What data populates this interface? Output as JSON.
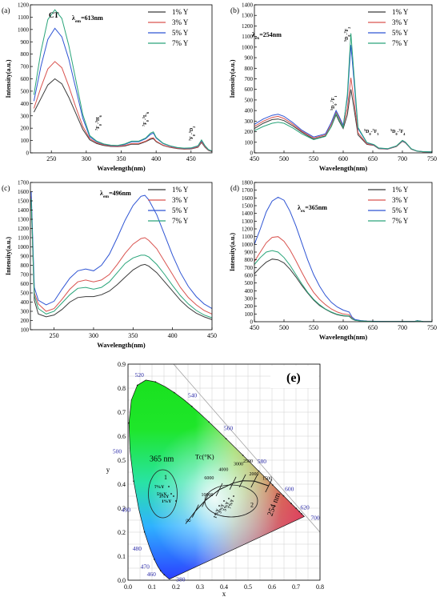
{
  "panel_labels": [
    "(a)",
    "(b)",
    "(c)",
    "(d)",
    "(e)"
  ],
  "series_names": [
    "1% Y",
    "3% Y",
    "5% Y",
    "7% Y"
  ],
  "series_colors": [
    "#3b3b3b",
    "#d9534f",
    "#2f55d4",
    "#2aa57a"
  ],
  "chart_data": [
    {
      "type": "line",
      "panel": "(a)",
      "annotation": "λem=613nm",
      "xlabel": "Wavelength(nm)",
      "ylabel": "Intensity(a.u.)",
      "xlim": [
        220,
        480
      ],
      "ylim": [
        0,
        1200
      ],
      "xticks": [
        250,
        300,
        350,
        400,
        450
      ],
      "yticks": [
        0,
        100,
        200,
        300,
        400,
        500,
        600,
        700,
        800,
        900,
        1000,
        1100,
        1200
      ],
      "peak_labels": [
        "CT",
        "7F0-5H6",
        "7F0-5L6",
        "7F0-5D2"
      ],
      "x": [
        225,
        235,
        245,
        255,
        265,
        275,
        285,
        295,
        305,
        315,
        325,
        335,
        345,
        355,
        365,
        375,
        385,
        392,
        396,
        400,
        410,
        420,
        430,
        440,
        450,
        460,
        465,
        470,
        475,
        480
      ],
      "series": [
        {
          "name": "1% Y",
          "values": [
            330,
            440,
            550,
            600,
            560,
            450,
            320,
            190,
            105,
            75,
            60,
            52,
            50,
            55,
            70,
            70,
            90,
            110,
            115,
            90,
            60,
            45,
            35,
            30,
            32,
            45,
            85,
            45,
            20,
            10
          ]
        },
        {
          "name": "3% Y",
          "values": [
            360,
            530,
            680,
            740,
            690,
            540,
            370,
            215,
            115,
            82,
            65,
            55,
            52,
            60,
            75,
            75,
            95,
            118,
            122,
            95,
            62,
            47,
            37,
            32,
            34,
            48,
            90,
            48,
            22,
            12
          ]
        },
        {
          "name": "5% Y",
          "values": [
            420,
            700,
            920,
            1010,
            940,
            760,
            520,
            280,
            130,
            90,
            70,
            60,
            58,
            68,
            90,
            90,
            115,
            150,
            160,
            120,
            75,
            55,
            42,
            36,
            38,
            55,
            100,
            55,
            25,
            14
          ]
        },
        {
          "name": "7% Y",
          "values": [
            470,
            820,
            1080,
            1160,
            1090,
            870,
            590,
            310,
            140,
            95,
            72,
            62,
            60,
            72,
            95,
            95,
            120,
            160,
            170,
            125,
            78,
            57,
            44,
            38,
            40,
            58,
            105,
            58,
            26,
            15
          ]
        }
      ]
    },
    {
      "type": "line",
      "panel": "(b)",
      "annotation": "λex=254nm",
      "xlabel": "Wavelength(nm)",
      "ylabel": "Intensity(a.u.)",
      "xlim": [
        450,
        750
      ],
      "ylim": [
        0,
        1400
      ],
      "xticks": [
        450,
        500,
        550,
        600,
        650,
        700,
        750
      ],
      "yticks": [
        0,
        100,
        200,
        300,
        400,
        500,
        600,
        700,
        800,
        900,
        1000,
        1100,
        1200,
        1300,
        1400
      ],
      "peak_labels": [
        "5D0-7F1",
        "5D0-7F2",
        "5D0-7F3",
        "5D0-7F4"
      ],
      "x": [
        450,
        465,
        480,
        490,
        500,
        515,
        530,
        550,
        570,
        580,
        588,
        593,
        600,
        607,
        613,
        618,
        625,
        640,
        652,
        660,
        675,
        690,
        700,
        705,
        715,
        725,
        735,
        750
      ],
      "series": [
        {
          "name": "1% Y",
          "values": [
            230,
            280,
            315,
            320,
            305,
            255,
            195,
            130,
            160,
            250,
            360,
            300,
            230,
            360,
            600,
            430,
            170,
            80,
            70,
            40,
            35,
            60,
            110,
            95,
            35,
            15,
            10,
            8
          ]
        },
        {
          "name": "3% Y",
          "values": [
            250,
            300,
            335,
            345,
            325,
            270,
            205,
            140,
            170,
            270,
            390,
            330,
            250,
            420,
            710,
            510,
            190,
            85,
            72,
            42,
            36,
            62,
            112,
            98,
            36,
            16,
            10,
            8
          ]
        },
        {
          "name": "5% Y",
          "values": [
            270,
            320,
            355,
            365,
            345,
            285,
            215,
            150,
            180,
            290,
            400,
            345,
            260,
            520,
            1020,
            700,
            230,
            95,
            76,
            45,
            38,
            65,
            115,
            100,
            38,
            17,
            11,
            8
          ]
        },
        {
          "name": "7% Y",
          "values": [
            210,
            250,
            280,
            290,
            280,
            235,
            180,
            125,
            155,
            250,
            370,
            310,
            240,
            550,
            1130,
            760,
            240,
            98,
            78,
            46,
            39,
            66,
            118,
            102,
            38,
            17,
            11,
            8
          ]
        }
      ]
    },
    {
      "type": "line",
      "panel": "(c)",
      "annotation": "λem=496nm",
      "xlabel": "Wavelength(nm)",
      "ylabel": "Intensity(a.u.)",
      "xlim": [
        220,
        450
      ],
      "ylim": [
        100,
        1700
      ],
      "xticks": [
        250,
        300,
        350,
        400,
        450
      ],
      "yticks": [
        100,
        200,
        300,
        400,
        500,
        600,
        700,
        800,
        900,
        1000,
        1100,
        1200,
        1300,
        1400,
        1500,
        1600,
        1700
      ],
      "x": [
        221,
        225,
        230,
        240,
        250,
        260,
        270,
        280,
        290,
        300,
        310,
        320,
        330,
        340,
        350,
        360,
        365,
        370,
        380,
        390,
        400,
        410,
        420,
        430,
        440,
        450
      ],
      "series": [
        {
          "name": "1% Y",
          "values": [
            1500,
            420,
            270,
            240,
            260,
            320,
            400,
            450,
            460,
            460,
            480,
            520,
            590,
            670,
            750,
            800,
            810,
            790,
            720,
            620,
            520,
            420,
            340,
            280,
            240,
            210
          ]
        },
        {
          "name": "3% Y",
          "values": [
            1550,
            500,
            380,
            300,
            330,
            430,
            540,
            620,
            640,
            620,
            640,
            700,
            810,
            930,
            1030,
            1090,
            1100,
            1070,
            980,
            840,
            700,
            560,
            450,
            370,
            310,
            270
          ]
        },
        {
          "name": "5% Y",
          "values": [
            1600,
            560,
            420,
            370,
            410,
            540,
            660,
            740,
            760,
            740,
            800,
            920,
            1100,
            1290,
            1450,
            1550,
            1560,
            1510,
            1350,
            1130,
            910,
            720,
            570,
            460,
            380,
            330
          ]
        },
        {
          "name": "7% Y",
          "values": [
            1520,
            470,
            330,
            270,
            300,
            390,
            480,
            550,
            560,
            540,
            560,
            620,
            720,
            820,
            880,
            910,
            910,
            890,
            810,
            700,
            580,
            470,
            380,
            310,
            260,
            230
          ]
        }
      ]
    },
    {
      "type": "line",
      "panel": "(d)",
      "annotation": "λex=365nm",
      "xlabel": "Wavelength(nm)",
      "ylabel": "Intensity(a.u.)",
      "xlim": [
        450,
        750
      ],
      "ylim": [
        0,
        1800
      ],
      "xticks": [
        450,
        500,
        550,
        600,
        650,
        700,
        750
      ],
      "yticks": [
        0,
        100,
        200,
        300,
        400,
        500,
        600,
        700,
        800,
        900,
        1000,
        1100,
        1200,
        1300,
        1400,
        1500,
        1600,
        1700,
        1800
      ],
      "x": [
        450,
        460,
        470,
        480,
        490,
        500,
        510,
        520,
        530,
        540,
        550,
        560,
        570,
        580,
        590,
        600,
        610,
        615,
        620,
        630,
        640,
        650,
        660,
        680,
        700,
        720,
        725,
        735,
        750
      ],
      "series": [
        {
          "name": "1% Y",
          "values": [
            620,
            700,
            770,
            810,
            800,
            760,
            680,
            580,
            470,
            370,
            280,
            210,
            160,
            120,
            90,
            75,
            70,
            35,
            18,
            10,
            6,
            4,
            3,
            2,
            2,
            2,
            10,
            2,
            1
          ]
        },
        {
          "name": "3% Y",
          "values": [
            780,
            900,
            1020,
            1090,
            1100,
            1040,
            930,
            790,
            640,
            500,
            380,
            290,
            220,
            165,
            125,
            100,
            90,
            45,
            22,
            12,
            7,
            5,
            4,
            3,
            2,
            2,
            12,
            2,
            1
          ]
        },
        {
          "name": "5% Y",
          "values": [
            1000,
            1200,
            1420,
            1560,
            1610,
            1570,
            1430,
            1240,
            1020,
            800,
            610,
            460,
            340,
            250,
            190,
            150,
            125,
            60,
            28,
            14,
            8,
            6,
            4,
            3,
            2,
            2,
            14,
            2,
            1
          ]
        },
        {
          "name": "7% Y",
          "values": [
            740,
            830,
            900,
            920,
            900,
            830,
            730,
            610,
            490,
            380,
            290,
            220,
            165,
            125,
            95,
            80,
            72,
            38,
            19,
            10,
            6,
            4,
            3,
            2,
            2,
            2,
            11,
            2,
            1
          ]
        }
      ]
    },
    {
      "type": "scatter",
      "panel": "(e)",
      "xlabel": "x",
      "ylabel": "y",
      "xlim": [
        0.0,
        0.8
      ],
      "ylim": [
        0.0,
        0.9
      ],
      "xticks": [
        0.0,
        0.1,
        0.2,
        0.3,
        0.4,
        0.5,
        0.6,
        0.7,
        0.8
      ],
      "yticks": [
        0.0,
        0.1,
        0.2,
        0.3,
        0.4,
        0.5,
        0.6,
        0.7,
        0.8,
        0.9
      ],
      "locus_labels": [
        "380",
        "460",
        "470",
        "480",
        "490",
        "500",
        "520",
        "540",
        "560",
        "580",
        "600",
        "620",
        "700"
      ],
      "locus_label_points": [
        [
          0.1741,
          0.005
        ],
        [
          0.144,
          0.0297
        ],
        [
          0.1241,
          0.0578
        ],
        [
          0.0913,
          0.1327
        ],
        [
          0.0454,
          0.295
        ],
        [
          0.0082,
          0.5384
        ],
        [
          0.0743,
          0.8338
        ],
        [
          0.2296,
          0.7543
        ],
        [
          0.3731,
          0.6245
        ],
        [
          0.5125,
          0.4866
        ],
        [
          0.627,
          0.3725
        ],
        [
          0.6915,
          0.3083
        ],
        [
          0.7347,
          0.2653
        ]
      ],
      "cct_label": "Tc(°K)",
      "cct_ticks": [
        "10000",
        "6000",
        "4000",
        "3000",
        "2500",
        "2000",
        "1500",
        "∞"
      ],
      "cct_points": [
        [
          0.281,
          0.288
        ],
        [
          0.322,
          0.332
        ],
        [
          0.38,
          0.377
        ],
        [
          0.437,
          0.404
        ],
        [
          0.477,
          0.414
        ],
        [
          0.526,
          0.413
        ],
        [
          0.586,
          0.393
        ]
      ],
      "group_labels": [
        "365 nm",
        "254 nm"
      ],
      "ellipse_ids": [
        "1",
        "2"
      ],
      "points_365": {
        "labels": [
          "7%Y",
          "5%Y",
          "3%Y",
          "1%Y"
        ],
        "values": [
          [
            0.13,
            0.39
          ],
          [
            0.14,
            0.36
          ],
          [
            0.15,
            0.35
          ],
          [
            0.16,
            0.33
          ]
        ]
      },
      "points_254": {
        "labels": [
          "1%Y",
          "3%Y",
          "5%Y",
          "7%Y"
        ],
        "values": [
          [
            0.38,
            0.31
          ],
          [
            0.4,
            0.33
          ],
          [
            0.42,
            0.34
          ],
          [
            0.44,
            0.35
          ]
        ]
      }
    }
  ]
}
